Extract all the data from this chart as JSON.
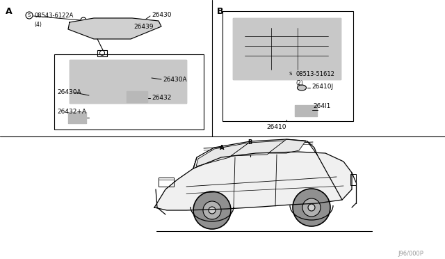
{
  "bg_color": "#ffffff",
  "line_color": "#000000",
  "text_color": "#000000",
  "fig_width": 6.4,
  "fig_height": 3.72,
  "dpi": 100,
  "watermark": "J96/000P",
  "section_A_label": "A",
  "section_B_label": "B",
  "parts_A": {
    "screw_label": "08543-6122A",
    "screw_qty": "(4)",
    "part_26430": "26430",
    "part_26439": "26439",
    "part_26430A_1": "26430A",
    "part_26430A_2": "26430A",
    "part_26432": "26432",
    "part_26432A": "26432+A"
  },
  "parts_B": {
    "screw_label": "08513-51612",
    "screw_qty": "(2)",
    "part_26410J": "26410J",
    "part_264I1": "264I1",
    "part_26410": "26410"
  }
}
